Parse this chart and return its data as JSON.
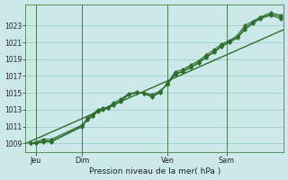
{
  "xlabel": "Pression niveau de la mer( hPa )",
  "background_color": "#cce8e8",
  "grid_color": "#99cccc",
  "line_color": "#2d6e2d",
  "ylim": [
    1008.0,
    1025.5
  ],
  "yticks": [
    1009,
    1011,
    1013,
    1015,
    1017,
    1019,
    1021,
    1023
  ],
  "day_labels": [
    "Jeu",
    "Dim",
    "Ven",
    "Sam"
  ],
  "day_positions": [
    0.04,
    0.22,
    0.55,
    0.78
  ],
  "smooth_line": {
    "x": [
      0.0,
      1.0
    ],
    "y": [
      1009.0,
      1022.5
    ]
  },
  "jagged1_x": [
    0.02,
    0.04,
    0.07,
    0.1,
    0.22,
    0.24,
    0.26,
    0.28,
    0.3,
    0.32,
    0.34,
    0.37,
    0.4,
    0.43,
    0.46,
    0.49,
    0.52,
    0.55,
    0.58,
    0.61,
    0.64,
    0.67,
    0.7,
    0.73,
    0.76,
    0.79,
    0.82,
    0.85,
    0.88,
    0.91,
    0.95,
    0.99
  ],
  "jagged1_y": [
    1009.0,
    1009.0,
    1009.2,
    1009.2,
    1011.0,
    1011.8,
    1012.2,
    1012.8,
    1013.0,
    1013.2,
    1013.5,
    1014.0,
    1014.8,
    1015.0,
    1015.0,
    1014.8,
    1015.2,
    1016.0,
    1017.2,
    1017.5,
    1018.0,
    1018.5,
    1019.2,
    1019.8,
    1020.5,
    1021.0,
    1021.5,
    1022.5,
    1023.2,
    1023.8,
    1024.2,
    1023.8
  ],
  "jagged2_x": [
    0.02,
    0.04,
    0.07,
    0.1,
    0.22,
    0.24,
    0.26,
    0.28,
    0.3,
    0.32,
    0.34,
    0.37,
    0.4,
    0.43,
    0.46,
    0.49,
    0.52,
    0.55,
    0.58,
    0.61,
    0.64,
    0.67,
    0.7,
    0.73,
    0.76,
    0.79,
    0.82,
    0.85,
    0.88,
    0.91,
    0.95,
    0.99
  ],
  "jagged2_y": [
    1009.0,
    1009.2,
    1009.5,
    1009.5,
    1011.2,
    1012.0,
    1012.5,
    1013.0,
    1013.2,
    1013.3,
    1013.8,
    1014.3,
    1014.9,
    1015.1,
    1014.9,
    1014.5,
    1015.0,
    1016.2,
    1017.5,
    1017.8,
    1018.3,
    1018.8,
    1019.5,
    1020.1,
    1020.8,
    1021.2,
    1021.8,
    1023.0,
    1023.5,
    1024.0,
    1024.5,
    1024.2
  ],
  "jagged3_x": [
    0.02,
    0.04,
    0.07,
    0.1,
    0.22,
    0.24,
    0.26,
    0.28,
    0.3,
    0.32,
    0.34,
    0.37,
    0.4,
    0.43,
    0.46,
    0.49,
    0.52,
    0.55,
    0.58,
    0.61,
    0.64,
    0.67,
    0.7,
    0.73,
    0.76,
    0.79,
    0.82,
    0.85,
    0.88,
    0.91,
    0.95,
    0.99
  ],
  "jagged3_y": [
    1009.0,
    1009.1,
    1009.3,
    1009.3,
    1011.1,
    1011.9,
    1012.3,
    1012.9,
    1013.1,
    1013.2,
    1013.6,
    1014.1,
    1014.85,
    1015.05,
    1014.95,
    1014.6,
    1015.1,
    1016.1,
    1017.3,
    1017.6,
    1018.1,
    1018.6,
    1019.3,
    1019.9,
    1020.6,
    1021.1,
    1021.6,
    1022.7,
    1023.35,
    1023.9,
    1024.35,
    1024.0
  ]
}
